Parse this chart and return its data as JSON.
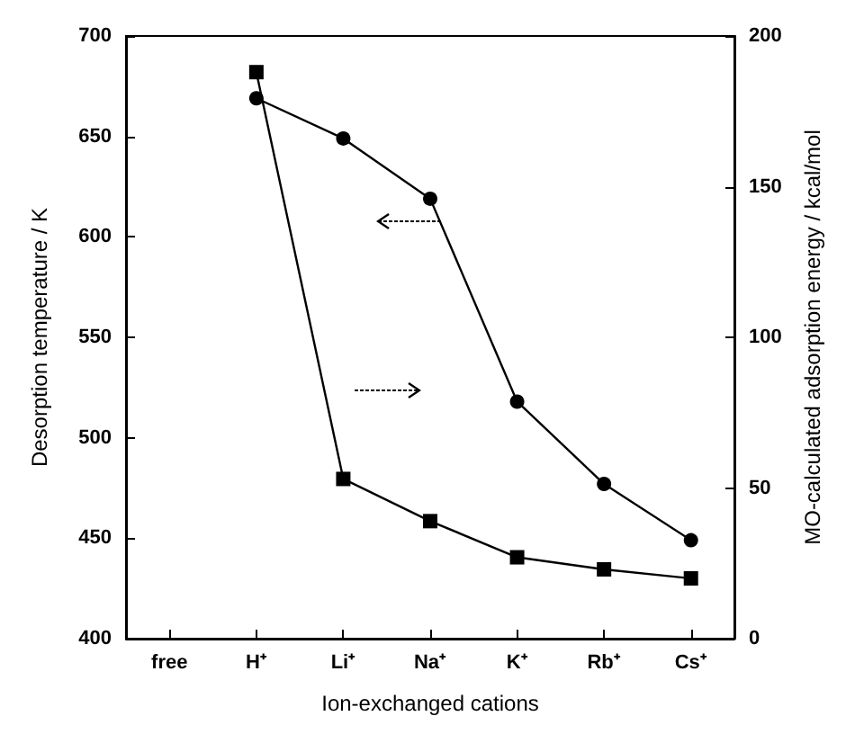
{
  "chart_data": {
    "type": "line",
    "xlabel": "Ion-exchanged cations",
    "ylabel": "Desorption temperature / K",
    "y2label": "MO-calculated adsorption energy / kcal/mol",
    "categories": [
      "free",
      "H⁺",
      "Li⁺",
      "Na⁺",
      "K⁺",
      "Rb⁺",
      "Cs⁺"
    ],
    "series": [
      {
        "color": "#000000",
        "marker": "circle",
        "values": [
          null,
          669,
          649,
          619,
          518,
          477,
          449
        ]
      },
      {
        "color": "#000000",
        "marker": "square",
        "axis": "y2",
        "values": [
          null,
          188,
          53,
          39,
          27,
          23,
          20
        ]
      }
    ],
    "ylim": [
      400,
      700
    ],
    "yticks": [
      400,
      450,
      500,
      550,
      600,
      650,
      700
    ],
    "y2lim": [
      0,
      200
    ],
    "y2ticks": [
      0,
      50,
      100,
      150,
      200
    ],
    "line_style": "solid"
  }
}
